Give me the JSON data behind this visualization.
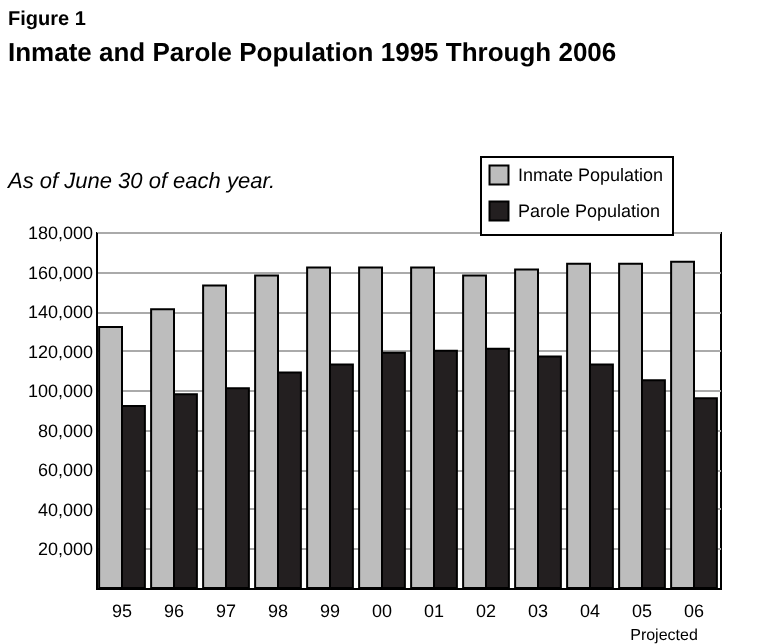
{
  "chart_data": {
    "type": "bar",
    "title": "Inmate and Parole Population 1995 Through 2006",
    "subtitle": "As of June 30 of each year.",
    "categories": [
      "95",
      "96",
      "97",
      "98",
      "99",
      "00",
      "01",
      "02",
      "03",
      "04",
      "05",
      "06"
    ],
    "series": [
      {
        "name": "Inmate Population",
        "color": "#bdbdbd",
        "values": [
          132000,
          141000,
          153000,
          158000,
          162000,
          162000,
          162000,
          158000,
          161000,
          164000,
          164000,
          165000
        ]
      },
      {
        "name": "Parole Population",
        "color": "#231f20",
        "values": [
          92000,
          98000,
          101000,
          109000,
          113000,
          119000,
          120000,
          121000,
          117000,
          113000,
          105000,
          96000
        ]
      }
    ],
    "ylim": [
      0,
      180000
    ],
    "yticks": [
      {
        "value": 20000,
        "label": "20,000"
      },
      {
        "value": 40000,
        "label": "40,000"
      },
      {
        "value": 60000,
        "label": "60,000"
      },
      {
        "value": 80000,
        "label": "80,000"
      },
      {
        "value": 100000,
        "label": "100,000"
      },
      {
        "value": 120000,
        "label": "120,000"
      },
      {
        "value": 140000,
        "label": "140,000"
      },
      {
        "value": 160000,
        "label": "160,000"
      },
      {
        "value": 180000,
        "label": "180,000"
      }
    ],
    "grid": "y",
    "legend": "top right",
    "annotations": [
      "Figure 1",
      "Projected"
    ]
  }
}
